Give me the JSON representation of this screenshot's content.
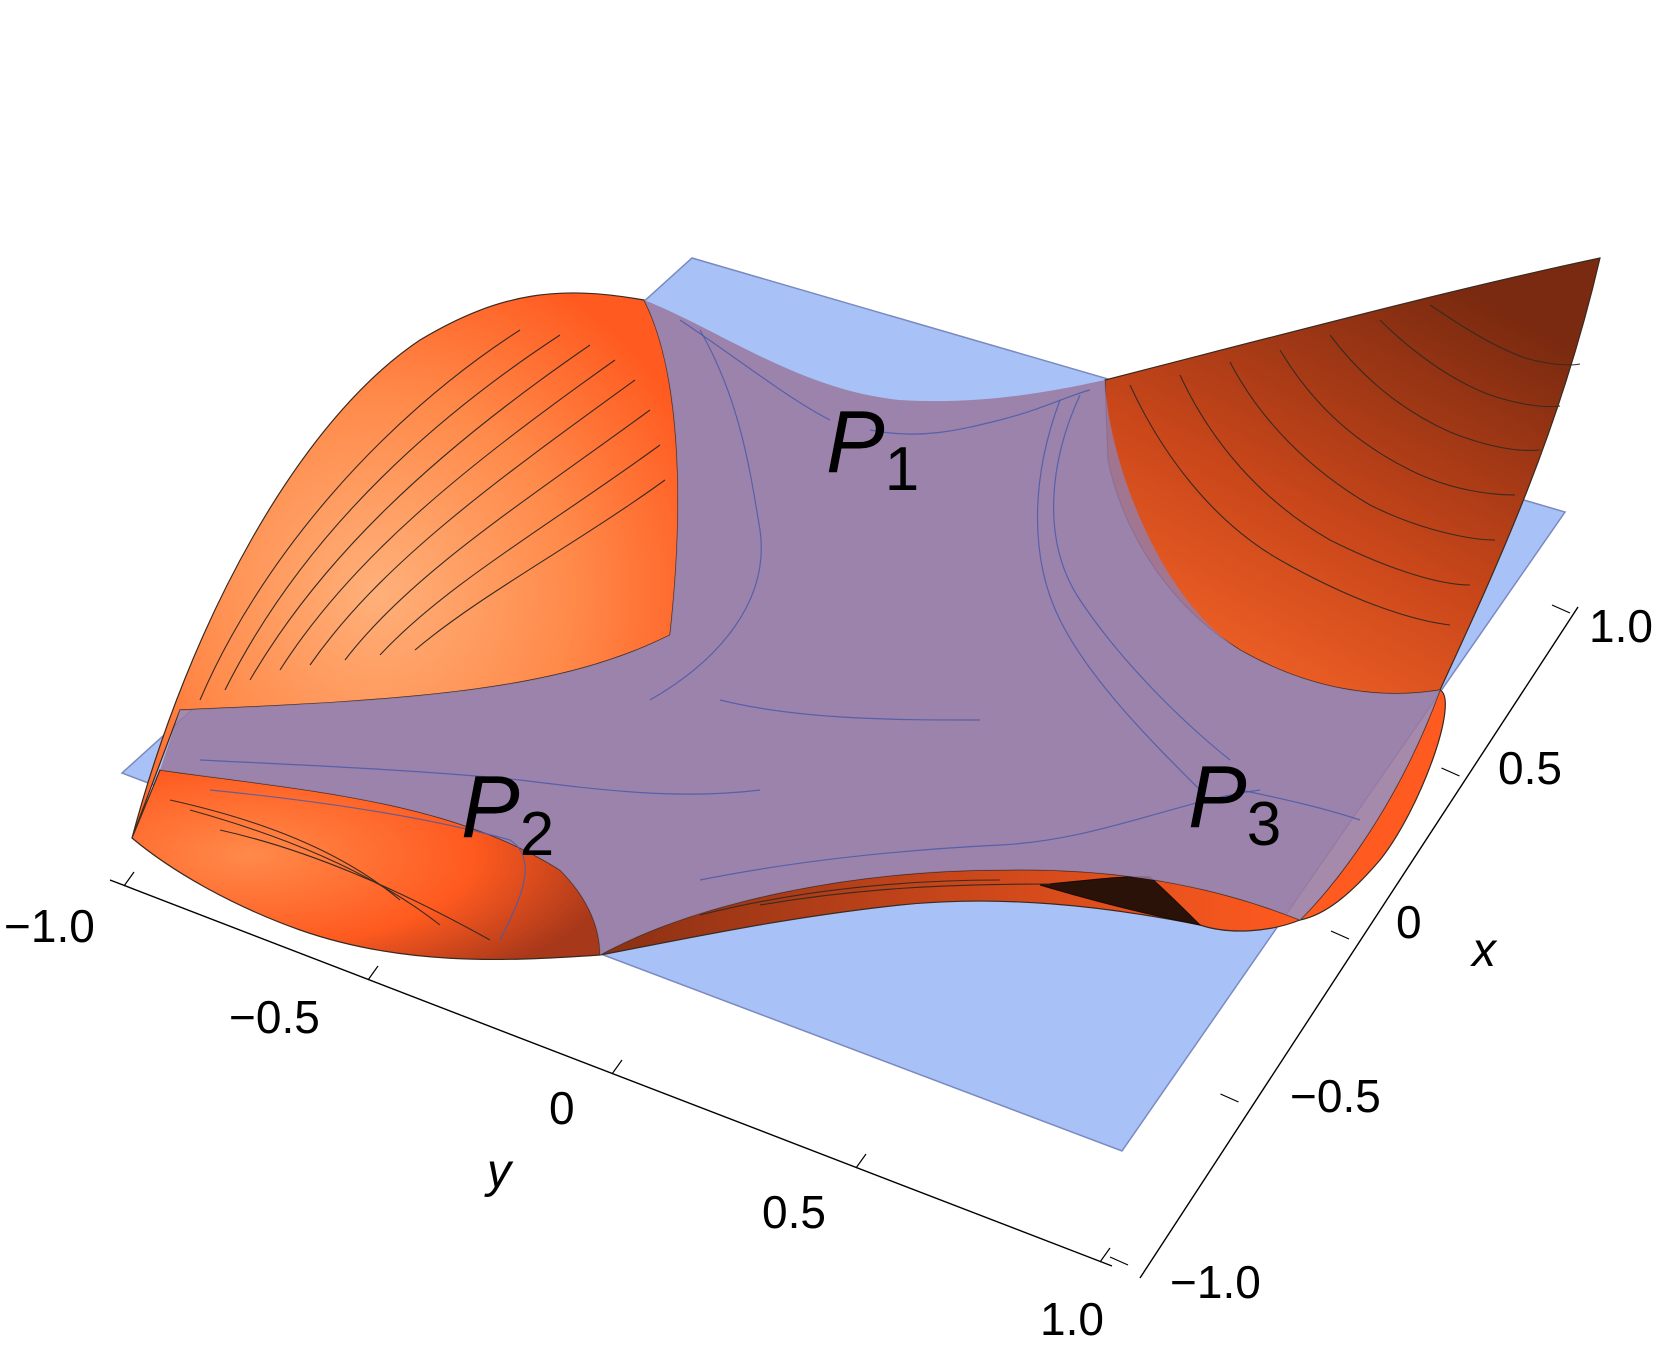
{
  "chart_data": {
    "type": "surface3d",
    "title": "",
    "xlabel": "x",
    "ylabel": "y",
    "xlim": [
      -1.0,
      1.0
    ],
    "ylim": [
      -1.0,
      1.0
    ],
    "x_ticks": [
      "-1.0",
      "-0.5",
      "0",
      "0.5",
      "1.0"
    ],
    "y_ticks": [
      "-1.0",
      "-0.5",
      "0",
      "0.5",
      "1.0"
    ],
    "critical_points": [
      {
        "letter": "P",
        "index": "1"
      },
      {
        "letter": "P",
        "index": "2"
      },
      {
        "letter": "P",
        "index": "3"
      }
    ],
    "colors": {
      "surface_light": "#ffa36a",
      "surface_mid": "#ff5a1f",
      "surface_dark": "#7a2a10",
      "plane": "#a8c2f8",
      "overlay": "#9a7aa0",
      "contour": "#3a2a20",
      "contour_on_plane": "#4a5aa8"
    }
  }
}
